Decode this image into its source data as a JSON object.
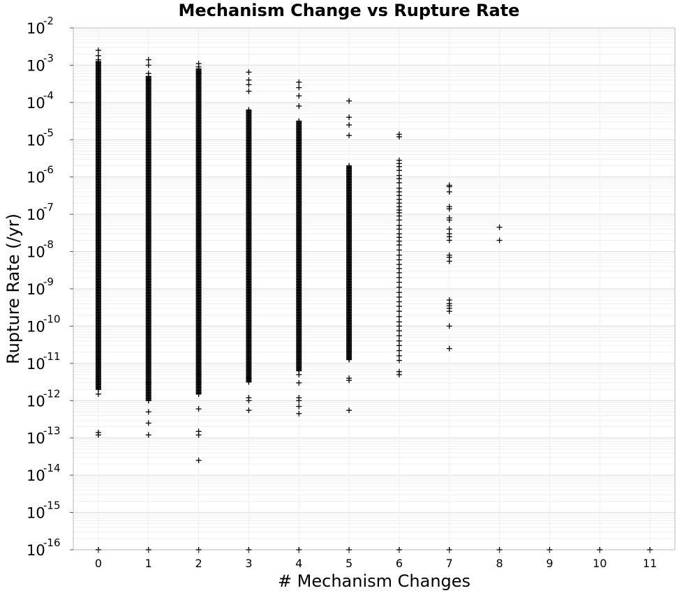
{
  "chart_data": {
    "type": "scatter",
    "title": "Mechanism Change vs Rupture Rate",
    "xlabel": "# Mechanism Changes",
    "ylabel": "Rupture Rate (/yr)",
    "x_ticks": [
      "0",
      "1",
      "2",
      "3",
      "4",
      "5",
      "6",
      "7",
      "8",
      "9",
      "10",
      "11"
    ],
    "xlim": [
      -0.5,
      11.5
    ],
    "ylim": [
      1e-16,
      0.01
    ],
    "yscale": "log",
    "y_tick_base": "10",
    "y_tick_exponents": [
      "-2",
      "-3",
      "-4",
      "-5",
      "-6",
      "-7",
      "-8",
      "-9",
      "-10",
      "-11",
      "-12",
      "-13",
      "-14",
      "-15",
      "-16"
    ],
    "grid": true,
    "marker": "+",
    "series": [
      {
        "points": [
          {
            "x": 0,
            "ylog_dense": [
              -11.7,
              -2.9
            ],
            "outliers": [
              0.0025,
              0.0018,
              0.0014,
              1.5e-12,
              1.2e-13,
              1.4e-13,
              1e-16
            ]
          },
          {
            "x": 1,
            "ylog_dense": [
              -12.0,
              -3.3
            ],
            "outliers": [
              0.0014,
              0.001,
              0.0006,
              0.0004,
              3e-12,
              5e-13,
              2.5e-13,
              1.2e-13,
              1e-16
            ]
          },
          {
            "x": 2,
            "ylog_dense": [
              -11.8,
              -3.1
            ],
            "outliers": [
              0.0011,
              0.0009,
              0.0006,
              5e-12,
              3e-12,
              1.5e-12,
              6e-13,
              1.5e-13,
              1.2e-13,
              2.5e-14,
              1e-16
            ]
          },
          {
            "x": 3,
            "ylog_dense": [
              -11.5,
              -4.2
            ],
            "outliers": [
              0.00065,
              0.0004,
              0.0003,
              0.0002,
              4e-12,
              1.2e-12,
              1e-12,
              5.5e-13,
              1e-16
            ]
          },
          {
            "x": 4,
            "ylog_dense": [
              -11.2,
              -4.5
            ],
            "outliers": [
              0.00035,
              0.00025,
              0.00015,
              8e-05,
              5e-12,
              3e-12,
              1.2e-12,
              1e-12,
              7e-13,
              4.5e-13,
              1e-16
            ]
          },
          {
            "x": 5,
            "ylog_dense": [
              -10.9,
              -5.7
            ],
            "outliers": [
              0.00011,
              4e-05,
              2.5e-05,
              1.3e-05,
              4e-12,
              3.5e-12,
              5.5e-13,
              1e-16
            ]
          },
          {
            "x": 6,
            "values": [
              1.4e-05,
              1.2e-05,
              2.8e-06,
              2.3e-06,
              1.9e-06,
              1.5e-06,
              1.1e-06,
              9e-07,
              7e-07,
              5e-07,
              4e-07,
              3.2e-07,
              2.5e-07,
              2e-07,
              1.6e-07,
              1.3e-07,
              1.1e-07,
              9e-08,
              7e-08,
              5e-08,
              4e-08,
              3e-08,
              2.4e-08,
              1.9e-08,
              1.5e-08,
              1.1e-08,
              8e-09,
              6e-09,
              4.5e-09,
              3.5e-09,
              2.7e-09,
              2e-09,
              1.5e-09,
              1.1e-09,
              8e-10,
              6e-10,
              4.5e-10,
              3.4e-10,
              2.5e-10,
              1.8e-10,
              1.3e-10,
              1e-10,
              7.5e-11,
              5.5e-11,
              4e-11,
              3e-11,
              2.2e-11,
              1.6e-11,
              1.2e-11,
              6e-12,
              5e-12,
              1e-16
            ]
          },
          {
            "x": 7,
            "values": [
              6e-07,
              5.5e-07,
              4e-07,
              1.6e-07,
              1.4e-07,
              8e-08,
              7e-08,
              4e-08,
              3e-08,
              2.5e-08,
              2e-08,
              8e-09,
              7e-09,
              5.5e-09,
              5e-10,
              4e-10,
              3.5e-10,
              3e-10,
              2.5e-10,
              1e-10,
              2.5e-11,
              1e-16
            ]
          },
          {
            "x": 8,
            "values": [
              4.5e-08,
              2e-08,
              1e-16
            ]
          },
          {
            "x": 9,
            "values": [
              1e-16
            ]
          },
          {
            "x": 10,
            "values": [
              1e-16
            ]
          },
          {
            "x": 11,
            "values": [
              1e-16
            ]
          }
        ]
      }
    ]
  }
}
